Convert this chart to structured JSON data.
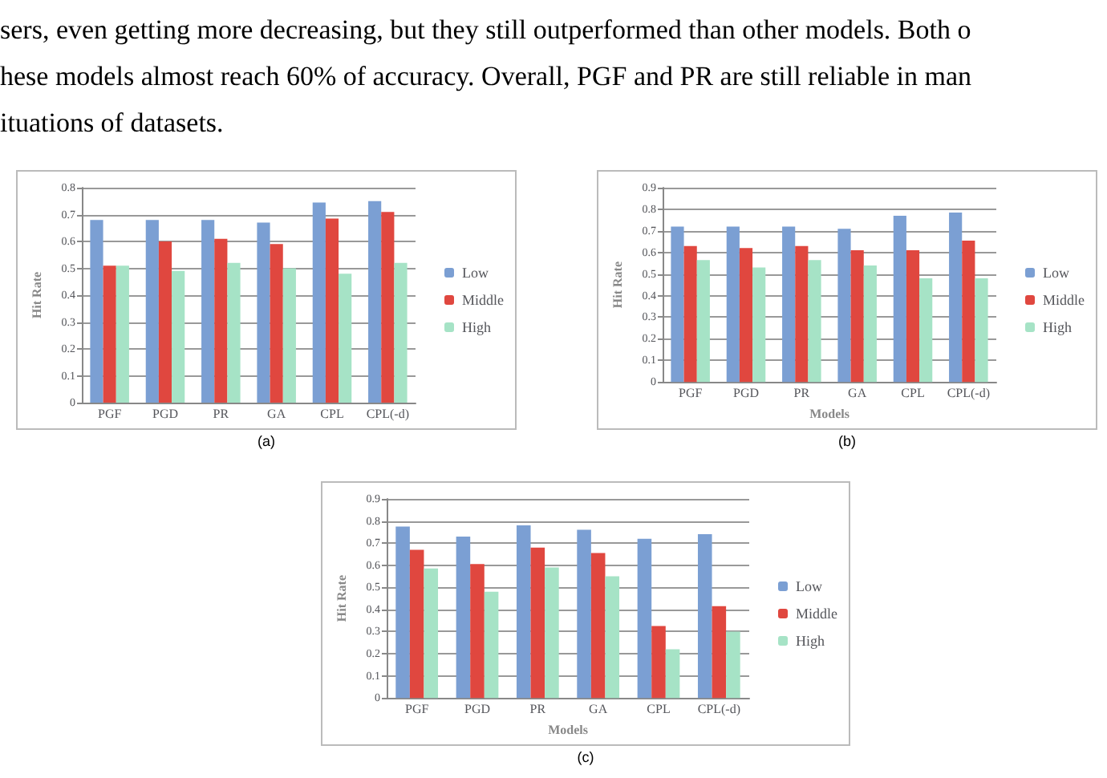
{
  "chart_data": [
    {
      "type": "other",
      "annotations": [
        "sers, even getting more decreasing, but they still outperformed than other models. Both o",
        "hese models almost reach 60% of accuracy. Overall, PGF and PR are still reliable in man",
        "ituations of datasets."
      ]
    },
    {
      "type": "bar",
      "ylabel": "Hit Rate",
      "categories": [
        "PGF",
        "PGD",
        "PR",
        "GA",
        "CPL",
        "CPL(-d)"
      ],
      "ylim": [
        0,
        0.8
      ],
      "yticks": [
        0,
        0.1,
        0.2,
        0.3,
        0.4,
        0.5,
        0.6,
        0.7,
        0.8
      ],
      "grid": "y",
      "legend": "right",
      "annotations": [
        "(a)"
      ],
      "series": [
        {
          "name": "Low",
          "color": "#7b9fd3",
          "values": [
            0.68,
            0.68,
            0.68,
            0.67,
            0.745,
            0.75
          ]
        },
        {
          "name": "Middle",
          "color": "#e0473f",
          "values": [
            0.51,
            0.6,
            0.61,
            0.59,
            0.685,
            0.71
          ]
        },
        {
          "name": "High",
          "color": "#a6e3c6",
          "values": [
            0.51,
            0.49,
            0.52,
            0.5,
            0.48,
            0.52
          ]
        }
      ]
    },
    {
      "type": "bar",
      "xlabel": "Models",
      "ylabel": "Hit Rate",
      "categories": [
        "PGF",
        "PGD",
        "PR",
        "GA",
        "CPL",
        "CPL(-d)"
      ],
      "ylim": [
        0,
        0.9
      ],
      "yticks": [
        0,
        0.1,
        0.2,
        0.3,
        0.4,
        0.5,
        0.6,
        0.7,
        0.8,
        0.9
      ],
      "grid": "y",
      "legend": "right",
      "annotations": [
        "(b)"
      ],
      "series": [
        {
          "name": "Low",
          "color": "#7b9fd3",
          "values": [
            0.72,
            0.72,
            0.72,
            0.71,
            0.77,
            0.785
          ]
        },
        {
          "name": "Middle",
          "color": "#e0473f",
          "values": [
            0.63,
            0.62,
            0.63,
            0.61,
            0.61,
            0.655
          ]
        },
        {
          "name": "High",
          "color": "#a6e3c6",
          "values": [
            0.565,
            0.53,
            0.565,
            0.54,
            0.48,
            0.48
          ]
        }
      ]
    },
    {
      "type": "bar",
      "xlabel": "Models",
      "ylabel": "Hit Rate",
      "categories": [
        "PGF",
        "PGD",
        "PR",
        "GA",
        "CPL",
        "CPL(-d)"
      ],
      "ylim": [
        0,
        0.9
      ],
      "yticks": [
        0,
        0.1,
        0.2,
        0.3,
        0.4,
        0.5,
        0.6,
        0.7,
        0.8,
        0.9
      ],
      "grid": "y",
      "legend": "right",
      "annotations": [
        "(c)"
      ],
      "series": [
        {
          "name": "Low",
          "color": "#7b9fd3",
          "values": [
            0.775,
            0.73,
            0.78,
            0.76,
            0.72,
            0.74
          ]
        },
        {
          "name": "Middle",
          "color": "#e0473f",
          "values": [
            0.67,
            0.605,
            0.68,
            0.655,
            0.325,
            0.415
          ]
        },
        {
          "name": "High",
          "color": "#a6e3c6",
          "values": [
            0.585,
            0.48,
            0.59,
            0.55,
            0.22,
            0.3
          ]
        }
      ]
    }
  ]
}
